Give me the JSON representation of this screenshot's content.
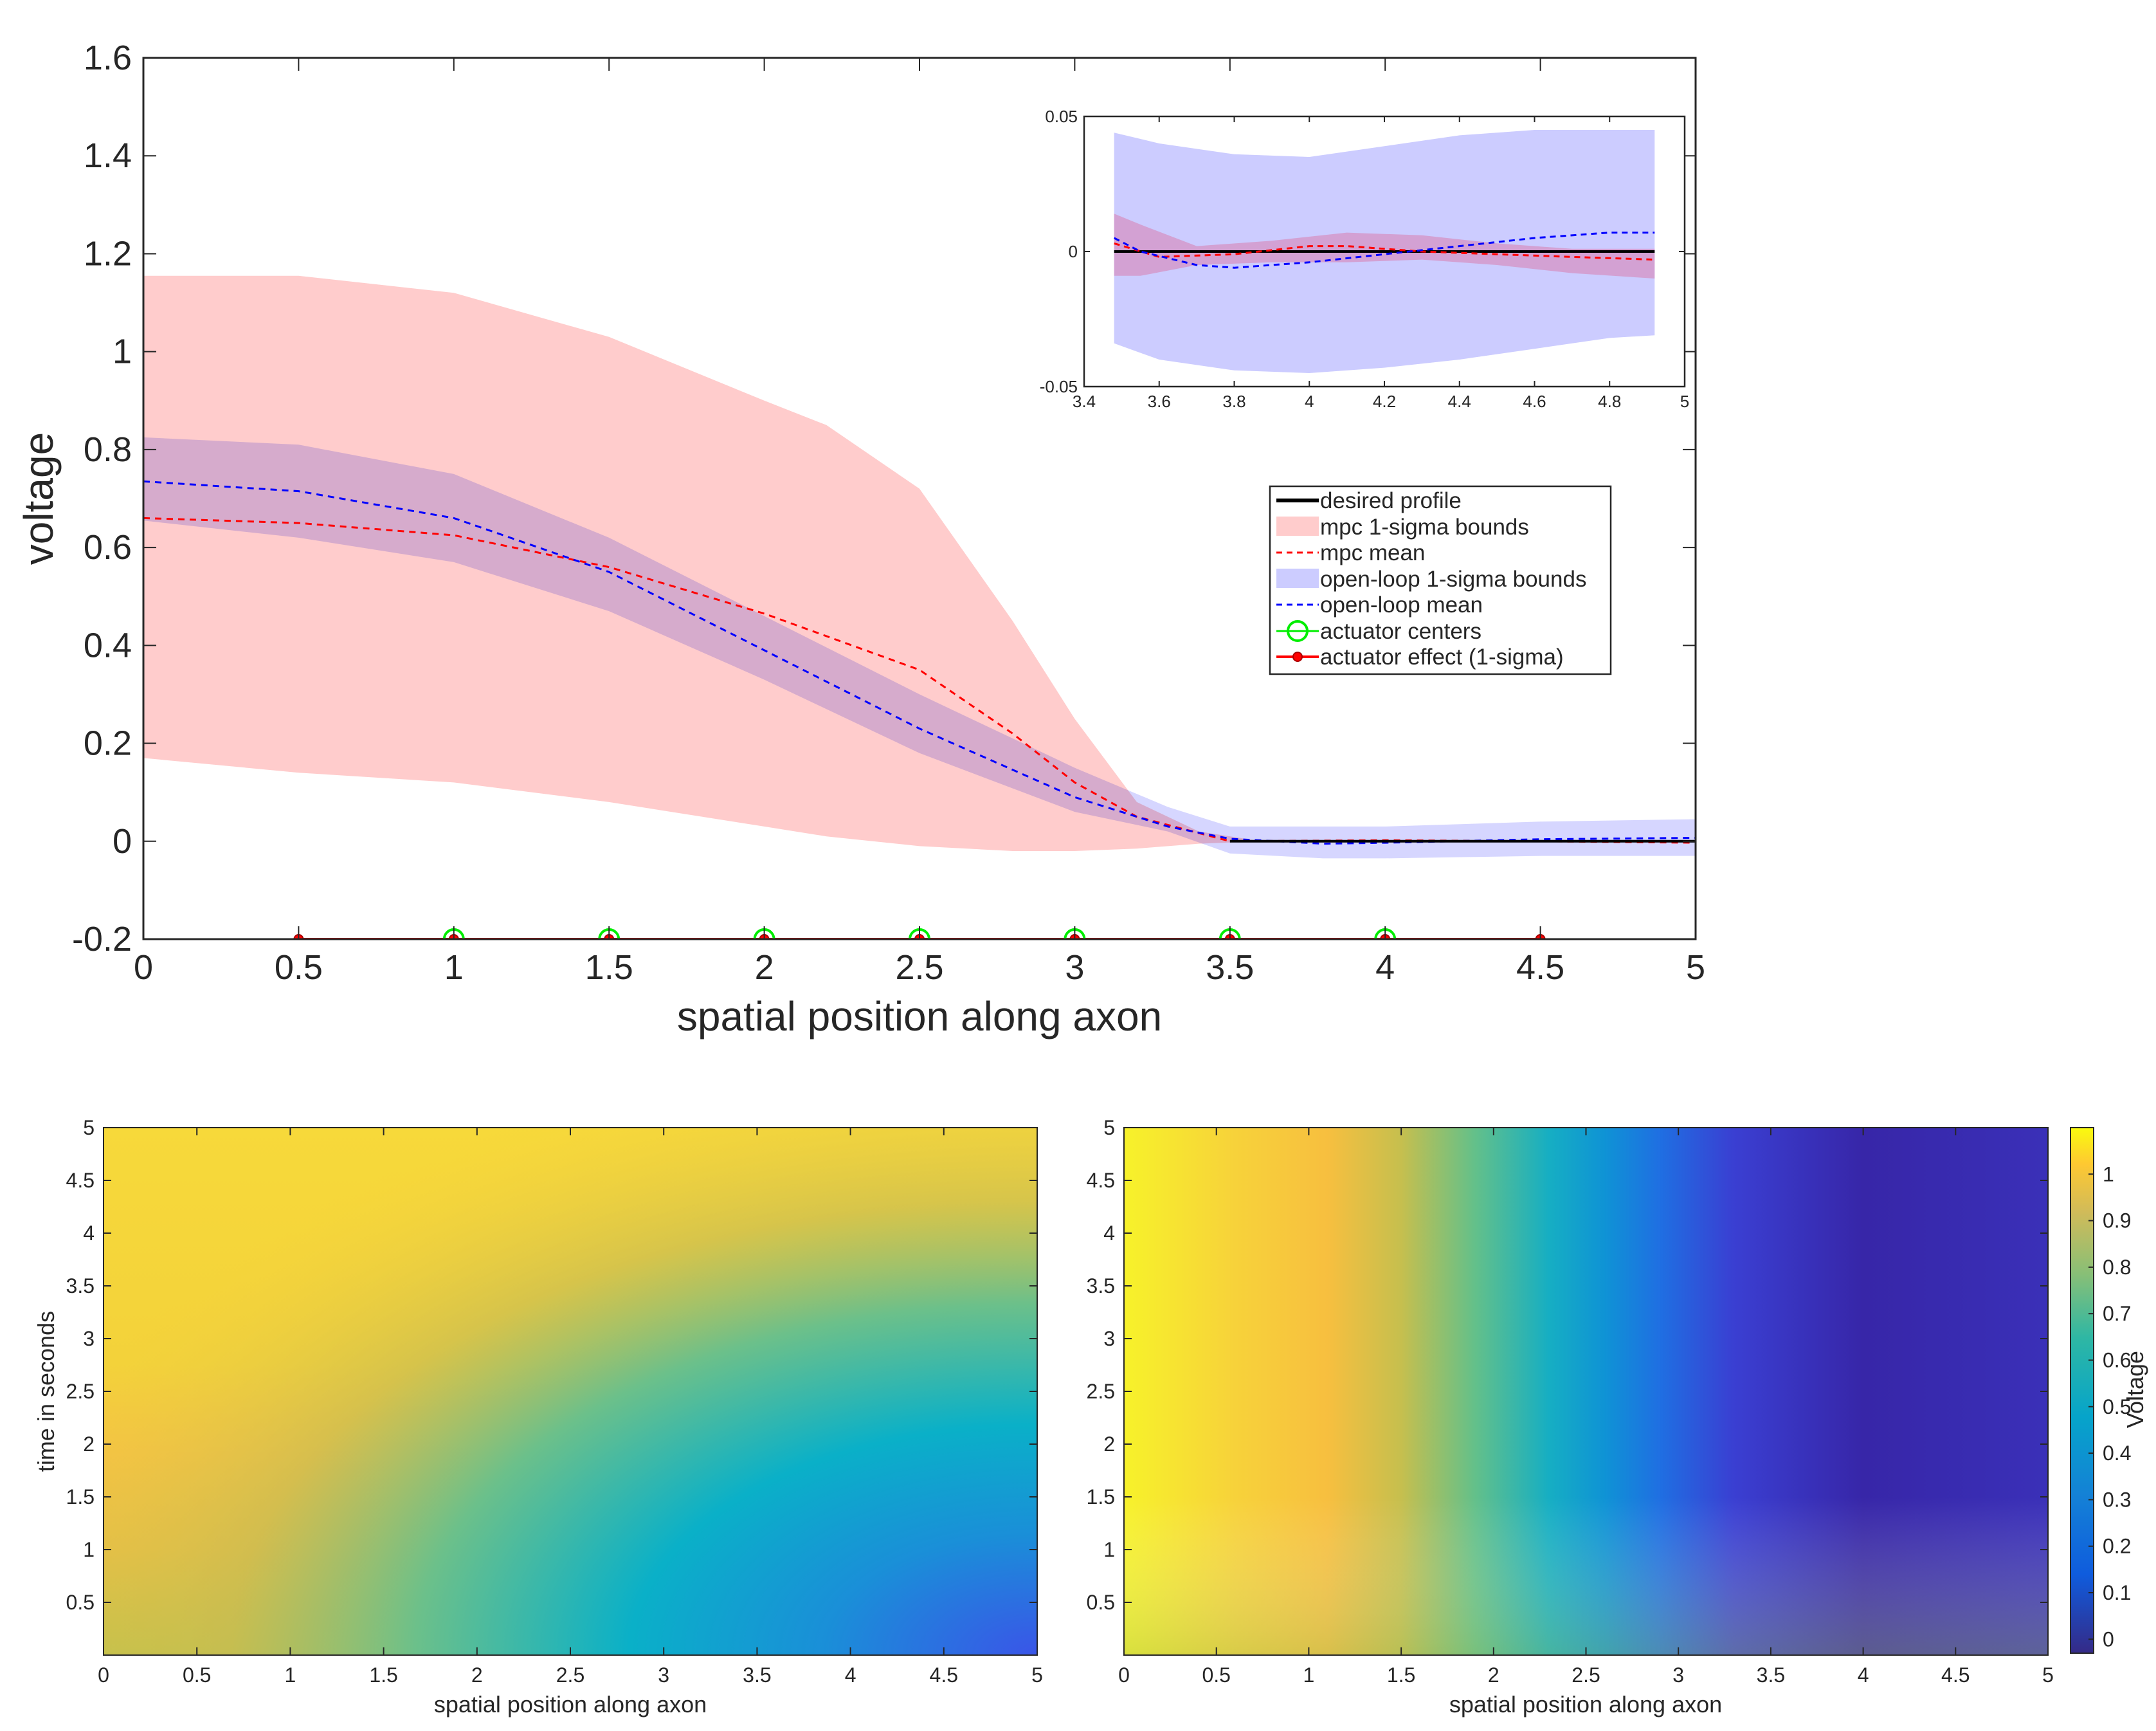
{
  "colors": {
    "mpc_band": "#ffcccc",
    "open_loop_band": "#ccccff",
    "overlap_band": "#c4a5d8",
    "mpc_mean": "#ff0000",
    "open_loop_mean": "#0000ff",
    "desired": "#000000",
    "actuator_center": "#00ee00",
    "actuator_effect": "#ff0000",
    "axes": "#262626"
  },
  "chart_data": [
    {
      "id": "main",
      "type": "line",
      "xlabel": "spatial position along axon",
      "ylabel": "voltage",
      "xlim": [
        0,
        5
      ],
      "ylim": [
        -0.2,
        1.6
      ],
      "xticks": [
        "0",
        "0.5",
        "1",
        "1.5",
        "2",
        "2.5",
        "3",
        "3.5",
        "4",
        "4.5",
        "5"
      ],
      "yticks": [
        "-0.2",
        "0",
        "0.2",
        "0.4",
        "0.6",
        "0.8",
        "1",
        "1.2",
        "1.4",
        "1.6"
      ],
      "xtick_values": [
        0,
        0.5,
        1,
        1.5,
        2,
        2.5,
        3,
        3.5,
        4,
        4.5,
        5
      ],
      "ytick_values": [
        -0.2,
        0,
        0.2,
        0.4,
        0.6,
        0.8,
        1,
        1.2,
        1.4,
        1.6
      ],
      "series": [
        {
          "name": "mpc 1-sigma bounds",
          "kind": "band",
          "x": [
            0,
            0.5,
            1,
            1.5,
            2,
            2.2,
            2.5,
            2.8,
            3.0,
            3.2,
            3.4,
            3.6,
            4,
            4.5,
            5
          ],
          "upper": [
            1.155,
            1.155,
            1.12,
            1.03,
            0.9,
            0.85,
            0.72,
            0.45,
            0.25,
            0.08,
            0.02,
            0.0,
            0.0,
            0.0,
            0.0
          ],
          "lower": [
            0.17,
            0.14,
            0.12,
            0.08,
            0.03,
            0.01,
            -0.01,
            -0.02,
            -0.02,
            -0.015,
            -0.005,
            0.0,
            0.0,
            0.0,
            0.0
          ]
        },
        {
          "name": "open-loop 1-sigma bounds",
          "kind": "band",
          "x": [
            0,
            0.5,
            1,
            1.5,
            2,
            2.5,
            3,
            3.3,
            3.5,
            3.8,
            4,
            4.5,
            5
          ],
          "upper": [
            0.825,
            0.81,
            0.75,
            0.62,
            0.46,
            0.3,
            0.15,
            0.07,
            0.03,
            0.03,
            0.03,
            0.04,
            0.045
          ],
          "lower": [
            0.655,
            0.62,
            0.57,
            0.47,
            0.33,
            0.18,
            0.06,
            0.02,
            -0.025,
            -0.035,
            -0.035,
            -0.03,
            -0.03
          ]
        },
        {
          "name": "mpc mean",
          "kind": "line",
          "x": [
            0,
            0.5,
            1,
            1.5,
            2,
            2.5,
            2.8,
            3,
            3.2,
            3.5,
            4,
            4.5,
            5
          ],
          "y": [
            0.66,
            0.65,
            0.625,
            0.56,
            0.465,
            0.35,
            0.22,
            0.12,
            0.05,
            0.0,
            0.002,
            0.0,
            -0.003
          ]
        },
        {
          "name": "open-loop mean",
          "kind": "line",
          "x": [
            0,
            0.5,
            1,
            1.5,
            2,
            2.5,
            3,
            3.3,
            3.5,
            3.8,
            4,
            4.5,
            5
          ],
          "y": [
            0.735,
            0.715,
            0.66,
            0.55,
            0.39,
            0.23,
            0.09,
            0.03,
            0.005,
            -0.005,
            -0.003,
            0.004,
            0.007
          ]
        },
        {
          "name": "desired profile",
          "kind": "line",
          "x": [
            3.5,
            5
          ],
          "y": [
            0,
            0
          ]
        },
        {
          "name": "actuator centers",
          "kind": "markers",
          "x": [
            1,
            1.5,
            2,
            2.5,
            3,
            3.5,
            4
          ],
          "y": [
            -0.2,
            -0.2,
            -0.2,
            -0.2,
            -0.2,
            -0.2,
            -0.2
          ]
        },
        {
          "name": "actuator effect (1-sigma)",
          "kind": "line-markers",
          "x": [
            0.5,
            1,
            1.5,
            2,
            2.5,
            3,
            3.5,
            4,
            4.5
          ],
          "y": [
            -0.2,
            -0.2,
            -0.2,
            -0.2,
            -0.2,
            -0.2,
            -0.2,
            -0.2,
            -0.2
          ]
        }
      ],
      "legend": {
        "placement": "center-right",
        "entries": [
          "desired profile",
          "mpc 1-sigma bounds",
          "mpc mean",
          "open-loop 1-sigma bounds",
          "open-loop mean",
          "actuator centers",
          "actuator effect (1-sigma)"
        ]
      }
    },
    {
      "id": "inset",
      "type": "line",
      "placement": "top-right",
      "xlim": [
        3.4,
        5
      ],
      "ylim": [
        -0.05,
        0.05
      ],
      "xticks": [
        "3.4",
        "3.6",
        "3.8",
        "4",
        "4.2",
        "4.4",
        "4.6",
        "4.8",
        "5"
      ],
      "yticks": [
        "-0.05",
        "0",
        "0.05"
      ],
      "xtick_values": [
        3.4,
        3.6,
        3.8,
        4,
        4.2,
        4.4,
        4.6,
        4.8,
        5
      ],
      "ytick_values": [
        -0.05,
        0,
        0.05
      ],
      "series": [
        {
          "name": "open-loop 1-sigma bounds",
          "kind": "band",
          "x": [
            3.48,
            3.6,
            3.8,
            4.0,
            4.2,
            4.4,
            4.6,
            4.8,
            4.92
          ],
          "upper": [
            0.044,
            0.04,
            0.036,
            0.035,
            0.039,
            0.043,
            0.045,
            0.045,
            0.045
          ],
          "lower": [
            -0.034,
            -0.04,
            -0.044,
            -0.045,
            -0.043,
            -0.04,
            -0.036,
            -0.032,
            -0.031
          ]
        },
        {
          "name": "mpc 1-sigma bounds",
          "kind": "band",
          "x": [
            3.48,
            3.55,
            3.7,
            3.9,
            4.1,
            4.3,
            4.5,
            4.7,
            4.92
          ],
          "upper": [
            0.014,
            0.01,
            0.002,
            0.004,
            0.007,
            0.006,
            0.003,
            0.001,
            0.001
          ],
          "lower": [
            -0.009,
            -0.009,
            -0.005,
            -0.004,
            -0.004,
            -0.003,
            -0.005,
            -0.008,
            -0.01
          ]
        },
        {
          "name": "mpc mean",
          "kind": "line",
          "x": [
            3.48,
            3.6,
            3.8,
            4.0,
            4.1,
            4.3,
            4.5,
            4.7,
            4.92
          ],
          "y": [
            0.003,
            -0.002,
            -0.001,
            0.002,
            0.002,
            0.0,
            -0.001,
            -0.002,
            -0.003
          ]
        },
        {
          "name": "open-loop mean",
          "kind": "line",
          "x": [
            3.48,
            3.55,
            3.7,
            3.8,
            4.0,
            4.2,
            4.4,
            4.6,
            4.8,
            4.92
          ],
          "y": [
            0.005,
            0.0,
            -0.005,
            -0.006,
            -0.004,
            -0.001,
            0.002,
            0.005,
            0.007,
            0.007
          ]
        },
        {
          "name": "desired profile",
          "kind": "line",
          "x": [
            3.48,
            4.92
          ],
          "y": [
            0,
            0
          ]
        }
      ]
    },
    {
      "id": "heatmap-left",
      "type": "heatmap",
      "xlabel": "spatial position along axon",
      "ylabel": "time in seconds",
      "xlim": [
        0,
        5
      ],
      "ylim": [
        0,
        5
      ],
      "xticks": [
        "0",
        "0.5",
        "1",
        "1.5",
        "2",
        "2.5",
        "3",
        "3.5",
        "4",
        "4.5",
        "5"
      ],
      "yticks": [
        "0.5",
        "1",
        "1.5",
        "2",
        "2.5",
        "3",
        "3.5",
        "4",
        "4.5",
        "5"
      ],
      "xtick_values": [
        0,
        0.5,
        1,
        1.5,
        2,
        2.5,
        3,
        3.5,
        4,
        4.5,
        5
      ],
      "ytick_values": [
        0.5,
        1,
        1.5,
        2,
        2.5,
        3,
        3.5,
        4,
        4.5,
        5
      ]
    },
    {
      "id": "heatmap-right",
      "type": "heatmap",
      "xlabel": "spatial position along axon",
      "xlim": [
        0,
        5
      ],
      "ylim": [
        0,
        5
      ],
      "xticks": [
        "0",
        "0.5",
        "1",
        "1.5",
        "2",
        "2.5",
        "3",
        "3.5",
        "4",
        "4.5",
        "5"
      ],
      "yticks": [
        "0.5",
        "1",
        "1.5",
        "2",
        "2.5",
        "3",
        "3.5",
        "4",
        "4.5",
        "5"
      ],
      "xtick_values": [
        0,
        0.5,
        1,
        1.5,
        2,
        2.5,
        3,
        3.5,
        4,
        4.5,
        5
      ],
      "ytick_values": [
        0.5,
        1,
        1.5,
        2,
        2.5,
        3,
        3.5,
        4,
        4.5,
        5
      ],
      "colorbar": {
        "label": "Voltage",
        "range": [
          -0.03,
          1.1
        ],
        "ticks": [
          "0",
          "0.1",
          "0.2",
          "0.3",
          "0.4",
          "0.5",
          "0.6",
          "0.7",
          "0.8",
          "0.9",
          "1"
        ],
        "tick_values": [
          0,
          0.1,
          0.2,
          0.3,
          0.4,
          0.5,
          0.6,
          0.7,
          0.8,
          0.9,
          1
        ]
      }
    }
  ]
}
